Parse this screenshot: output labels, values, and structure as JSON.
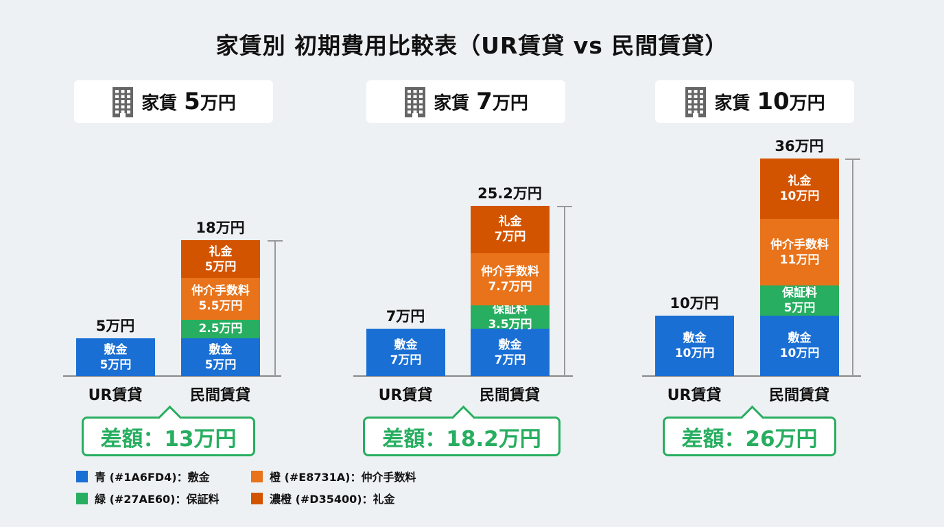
{
  "chart_data": {
    "type": "bar",
    "stacked": true,
    "title": "家賃別 初期費用比較表（UR賃貸 vs 民間賃貸）",
    "categories": [
      "UR賃貸",
      "民間賃貸"
    ],
    "unit_label": "万円",
    "colors": {
      "敷金": "#1A6FD4",
      "保証料": "#27AE60",
      "仲介手数料": "#E8731A",
      "礼金": "#D35400"
    },
    "panels": [
      {
        "header_prefix": "家賃",
        "header_value": "5",
        "header_unit": "万円",
        "bars": [
          {
            "category": "UR賃貸",
            "total_label": "5万円",
            "segments": [
              {
                "name": "敷金",
                "value": 5,
                "value_label": "5万円",
                "show_name": true
              }
            ]
          },
          {
            "category": "民間賃貸",
            "total_label": "18万円",
            "segments": [
              {
                "name": "敷金",
                "value": 5,
                "value_label": "5万円",
                "show_name": true
              },
              {
                "name": "保証料",
                "value": 2.5,
                "value_label": "2.5万円",
                "show_name": false
              },
              {
                "name": "仲介手数料",
                "value": 5.5,
                "value_label": "5.5万円",
                "show_name": true
              },
              {
                "name": "礼金",
                "value": 5,
                "value_label": "5万円",
                "show_name": true
              }
            ]
          }
        ],
        "difference_label": "差額：13万円"
      },
      {
        "header_prefix": "家賃",
        "header_value": "7",
        "header_unit": "万円",
        "bars": [
          {
            "category": "UR賃貸",
            "total_label": "7万円",
            "segments": [
              {
                "name": "敷金",
                "value": 7,
                "value_label": "7万円",
                "show_name": true
              }
            ]
          },
          {
            "category": "民間賃貸",
            "total_label": "25.2万円",
            "segments": [
              {
                "name": "敷金",
                "value": 7,
                "value_label": "7万円",
                "show_name": true
              },
              {
                "name": "保証料",
                "value": 3.5,
                "value_label": "3.5万円",
                "show_name": true
              },
              {
                "name": "仲介手数料",
                "value": 7.7,
                "value_label": "7.7万円",
                "show_name": true
              },
              {
                "name": "礼金",
                "value": 7,
                "value_label": "7万円",
                "show_name": true
              }
            ]
          }
        ],
        "difference_label": "差額：18.2万円"
      },
      {
        "header_prefix": "家賃",
        "header_value": "10",
        "header_unit": "万円",
        "bars": [
          {
            "category": "UR賃貸",
            "total_label": "10万円",
            "segments": [
              {
                "name": "敷金",
                "value": 10,
                "value_label": "10万円",
                "show_name": true
              }
            ]
          },
          {
            "category": "民間賃貸",
            "total_label": "36万円",
            "segments": [
              {
                "name": "敷金",
                "value": 10,
                "value_label": "10万円",
                "show_name": true
              },
              {
                "name": "保証料",
                "value": 5,
                "value_label": "5万円",
                "show_name": true
              },
              {
                "name": "仲介手数料",
                "value": 11,
                "value_label": "11万円",
                "show_name": true
              },
              {
                "name": "礼金",
                "value": 10,
                "value_label": "10万円",
                "show_name": true
              }
            ]
          }
        ],
        "difference_label": "差額：26万円"
      }
    ],
    "legend": [
      {
        "label": "青 (#1A6FD4)：敷金",
        "color": "#1A6FD4"
      },
      {
        "label": "橙 (#E8731A)：仲介手数料",
        "color": "#E8731A"
      },
      {
        "label": "緑 (#27AE60)：保証料",
        "color": "#27AE60"
      },
      {
        "label": "濃橙 (#D35400)：礼金",
        "color": "#D35400"
      }
    ]
  }
}
